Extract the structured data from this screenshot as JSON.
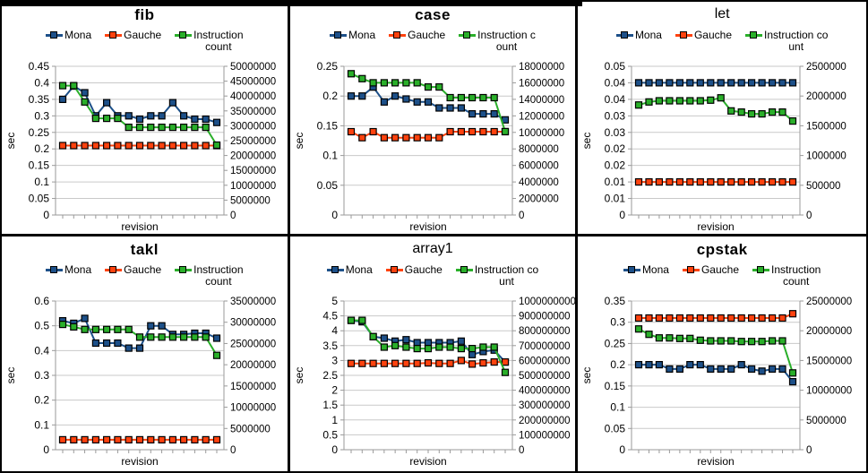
{
  "palette": {
    "mona": "#1d5089",
    "gauche": "#ff420e",
    "instruction_count": "#2aaf2a",
    "grid": "#c9c9c9",
    "axis": "#9a9a9a",
    "marker_border": "#000000",
    "panel_border": "#000000",
    "background": "#ffffff"
  },
  "chart_data": [
    {
      "type": "line",
      "title": "fib",
      "title_bold": true,
      "xlabel": "revision",
      "ylabel": "sec",
      "legend": {
        "mona": "Mona",
        "gauche": "Gauche",
        "instr_line1": "Instruction",
        "instr_line2": "count"
      },
      "axes": {
        "left": {
          "max": 0.45,
          "labels": [
            "0.45",
            "0.4",
            "0.35",
            "0.3",
            "0.25",
            "0.2",
            "0.15",
            "0.1",
            "0.05",
            "0"
          ]
        },
        "right": {
          "max": 50000000,
          "labels": [
            "50000000",
            "45000000",
            "40000000",
            "35000000",
            "30000000",
            "25000000",
            "20000000",
            "15000000",
            "10000000",
            "5000000",
            "0"
          ]
        }
      },
      "series": [
        {
          "name": "Mona",
          "axis": "left",
          "color_key": "mona",
          "values": [
            0.35,
            0.39,
            0.37,
            0.3,
            0.34,
            0.3,
            0.3,
            0.29,
            0.3,
            0.3,
            0.34,
            0.3,
            0.29,
            0.29,
            0.28
          ]
        },
        {
          "name": "Gauche",
          "axis": "left",
          "color_key": "gauche",
          "values": [
            0.21,
            0.21,
            0.21,
            0.21,
            0.21,
            0.21,
            0.21,
            0.21,
            0.21,
            0.21,
            0.21,
            0.21,
            0.21,
            0.21,
            0.21
          ]
        },
        {
          "name": "Instruction count",
          "axis": "right",
          "color_key": "instruction_count",
          "values": [
            43500000,
            43500000,
            38000000,
            32500000,
            32500000,
            32500000,
            29500000,
            29500000,
            29500000,
            29500000,
            29500000,
            29500000,
            29500000,
            29500000,
            23500000
          ]
        }
      ]
    },
    {
      "type": "line",
      "title": "case",
      "title_bold": true,
      "xlabel": "revision",
      "ylabel": "sec",
      "legend": {
        "mona": "Mona",
        "gauche": "Gauche",
        "instr_line1": "Instruction c",
        "instr_line2": "ount"
      },
      "axes": {
        "left": {
          "max": 0.25,
          "labels": [
            "0.25",
            "0.2",
            "0.15",
            "0.1",
            "0.05",
            "0"
          ]
        },
        "right": {
          "max": 18000000,
          "labels": [
            "18000000",
            "16000000",
            "14000000",
            "12000000",
            "10000000",
            "8000000",
            "6000000",
            "4000000",
            "2000000",
            "0"
          ]
        }
      },
      "series": [
        {
          "name": "Mona",
          "axis": "left",
          "color_key": "mona",
          "values": [
            0.2,
            0.2,
            0.215,
            0.19,
            0.2,
            0.195,
            0.19,
            0.19,
            0.18,
            0.18,
            0.18,
            0.17,
            0.17,
            0.17,
            0.16
          ]
        },
        {
          "name": "Gauche",
          "axis": "left",
          "color_key": "gauche",
          "values": [
            0.14,
            0.13,
            0.14,
            0.13,
            0.13,
            0.13,
            0.13,
            0.13,
            0.13,
            0.14,
            0.14,
            0.14,
            0.14,
            0.14,
            0.14
          ]
        },
        {
          "name": "Instruction count",
          "axis": "right",
          "color_key": "instruction_count",
          "values": [
            17100000,
            16500000,
            16000000,
            16000000,
            16000000,
            16000000,
            16000000,
            15500000,
            15500000,
            14200000,
            14200000,
            14200000,
            14200000,
            14200000,
            10100000
          ]
        }
      ]
    },
    {
      "type": "line",
      "title": "let",
      "title_bold": false,
      "xlabel": "revision",
      "ylabel": "sec",
      "legend": {
        "mona": "Mona",
        "gauche": "Gauche",
        "instr_line1": "Instruction co",
        "instr_line2": "unt"
      },
      "axes": {
        "left": {
          "max": 0.045,
          "labels": [
            "0.05",
            "0.04",
            "0.04",
            "0.03",
            "0.03",
            "0.02",
            "0.02",
            "0.01",
            "0.01",
            "0"
          ]
        },
        "right": {
          "max": 2500000,
          "labels": [
            "2500000",
            "2000000",
            "1500000",
            "1000000",
            "500000",
            "0"
          ]
        }
      },
      "series": [
        {
          "name": "Mona",
          "axis": "left",
          "color_key": "mona",
          "values": [
            0.04,
            0.04,
            0.04,
            0.04,
            0.04,
            0.04,
            0.04,
            0.04,
            0.04,
            0.04,
            0.04,
            0.04,
            0.04,
            0.04,
            0.04,
            0.04
          ]
        },
        {
          "name": "Gauche",
          "axis": "left",
          "color_key": "gauche",
          "values": [
            0.01,
            0.01,
            0.01,
            0.01,
            0.01,
            0.01,
            0.01,
            0.01,
            0.01,
            0.01,
            0.01,
            0.01,
            0.01,
            0.01,
            0.01,
            0.01
          ]
        },
        {
          "name": "Instruction count",
          "axis": "right",
          "color_key": "instruction_count",
          "values": [
            1850000,
            1900000,
            1920000,
            1920000,
            1920000,
            1920000,
            1920000,
            1930000,
            1970000,
            1750000,
            1730000,
            1700000,
            1700000,
            1730000,
            1730000,
            1580000
          ]
        }
      ]
    },
    {
      "type": "line",
      "title": "takl",
      "title_bold": true,
      "xlabel": "revision",
      "ylabel": "sec",
      "legend": {
        "mona": "Mona",
        "gauche": "Gauche",
        "instr_line1": "Instruction",
        "instr_line2": "count"
      },
      "axes": {
        "left": {
          "max": 0.6,
          "labels": [
            "0.6",
            "0.5",
            "0.4",
            "0.3",
            "0.2",
            "0.1",
            "0"
          ]
        },
        "right": {
          "max": 35000000,
          "labels": [
            "35000000",
            "30000000",
            "25000000",
            "20000000",
            "15000000",
            "10000000",
            "5000000",
            "0"
          ]
        }
      },
      "series": [
        {
          "name": "Mona",
          "axis": "left",
          "color_key": "mona",
          "values": [
            0.52,
            0.51,
            0.53,
            0.43,
            0.43,
            0.43,
            0.41,
            0.41,
            0.5,
            0.5,
            0.465,
            0.465,
            0.47,
            0.47,
            0.45
          ]
        },
        {
          "name": "Gauche",
          "axis": "left",
          "color_key": "gauche",
          "values": [
            0.04,
            0.04,
            0.04,
            0.04,
            0.04,
            0.04,
            0.04,
            0.04,
            0.04,
            0.04,
            0.04,
            0.04,
            0.04,
            0.04,
            0.04
          ]
        },
        {
          "name": "Instruction count",
          "axis": "right",
          "color_key": "instruction_count",
          "values": [
            29500000,
            28900000,
            28300000,
            28300000,
            28300000,
            28300000,
            28300000,
            26500000,
            26500000,
            26500000,
            26500000,
            26500000,
            26500000,
            26500000,
            22200000
          ]
        }
      ]
    },
    {
      "type": "line",
      "title": "array1",
      "title_bold": false,
      "xlabel": "revision",
      "ylabel": "sec",
      "legend": {
        "mona": "Mona",
        "gauche": "Gauche",
        "instr_line1": "Instruction co",
        "instr_line2": "unt"
      },
      "axes": {
        "left": {
          "max": 5,
          "labels": [
            "5",
            "4.5",
            "4",
            "3.5",
            "3",
            "2.5",
            "2",
            "1.5",
            "1",
            "0.5",
            "0"
          ]
        },
        "right": {
          "max": 1000000000,
          "labels": [
            "1000000000",
            "900000000",
            "800000000",
            "700000000",
            "600000000",
            "500000000",
            "400000000",
            "300000000",
            "200000000",
            "100000000",
            "0"
          ]
        }
      },
      "series": [
        {
          "name": "Mona",
          "axis": "left",
          "color_key": "mona",
          "values": [
            4.35,
            4.3,
            3.8,
            3.75,
            3.65,
            3.7,
            3.6,
            3.6,
            3.6,
            3.6,
            3.65,
            3.2,
            3.3,
            3.35,
            2.95
          ]
        },
        {
          "name": "Gauche",
          "axis": "left",
          "color_key": "gauche",
          "values": [
            2.9,
            2.9,
            2.9,
            2.9,
            2.9,
            2.9,
            2.9,
            2.92,
            2.9,
            2.9,
            3.0,
            2.88,
            2.92,
            2.95,
            2.95
          ]
        },
        {
          "name": "Instruction count",
          "axis": "right",
          "color_key": "instruction_count",
          "values": [
            870000000,
            870000000,
            760000000,
            690000000,
            700000000,
            690000000,
            680000000,
            680000000,
            690000000,
            690000000,
            680000000,
            680000000,
            690000000,
            690000000,
            520000000
          ]
        }
      ]
    },
    {
      "type": "line",
      "title": "cpstak",
      "title_bold": true,
      "xlabel": "revision",
      "ylabel": "sec",
      "legend": {
        "mona": "Mona",
        "gauche": "Gauche",
        "instr_line1": "Instruction",
        "instr_line2": "count"
      },
      "axes": {
        "left": {
          "max": 0.35,
          "labels": [
            "0.35",
            "0.3",
            "0.25",
            "0.2",
            "0.15",
            "0.1",
            "0.05",
            "0"
          ]
        },
        "right": {
          "max": 25000000,
          "labels": [
            "25000000",
            "20000000",
            "15000000",
            "10000000",
            "5000000",
            "0"
          ]
        }
      },
      "series": [
        {
          "name": "Mona",
          "axis": "left",
          "color_key": "mona",
          "values": [
            0.2,
            0.2,
            0.2,
            0.19,
            0.19,
            0.2,
            0.2,
            0.19,
            0.19,
            0.19,
            0.2,
            0.19,
            0.185,
            0.19,
            0.19,
            0.16
          ]
        },
        {
          "name": "Gauche",
          "axis": "left",
          "color_key": "gauche",
          "values": [
            0.31,
            0.31,
            0.31,
            0.31,
            0.31,
            0.31,
            0.31,
            0.31,
            0.31,
            0.31,
            0.31,
            0.31,
            0.31,
            0.31,
            0.31,
            0.32
          ]
        },
        {
          "name": "Instruction count",
          "axis": "right",
          "color_key": "instruction_count",
          "values": [
            20300000,
            19400000,
            18800000,
            18800000,
            18700000,
            18700000,
            18400000,
            18300000,
            18300000,
            18300000,
            18200000,
            18200000,
            18200000,
            18300000,
            18300000,
            12900000
          ]
        }
      ]
    }
  ]
}
